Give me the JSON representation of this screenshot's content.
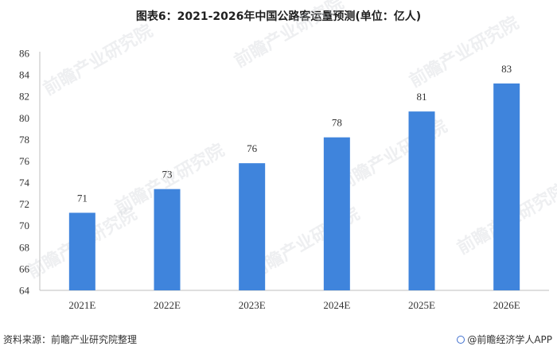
{
  "chart_data": {
    "type": "bar",
    "title": "图表6：2021-2026年中国公路客运量预测(单位：亿人)",
    "categories": [
      "2021E",
      "2022E",
      "2023E",
      "2024E",
      "2025E",
      "2026E"
    ],
    "values": [
      71.2,
      73.4,
      75.8,
      78.2,
      80.6,
      83.2
    ],
    "data_labels": [
      "71",
      "73",
      "76",
      "78",
      "81",
      "83"
    ],
    "ylim": [
      64,
      86
    ],
    "yticks": [
      64,
      66,
      68,
      70,
      72,
      74,
      76,
      78,
      80,
      82,
      84,
      86
    ],
    "grid": false,
    "bar_color": "#3f84dc"
  },
  "watermark": "前瞻产业研究院",
  "footer": {
    "source": "资料来源：前瞻产业研究院整理",
    "brand": "@前瞻经济学人APP"
  }
}
